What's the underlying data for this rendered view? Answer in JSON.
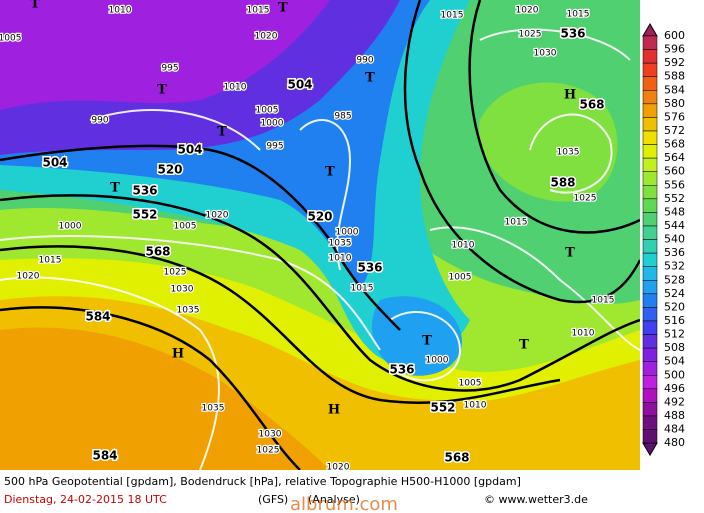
{
  "legend": {
    "levels": [
      600,
      596,
      592,
      588,
      584,
      580,
      576,
      572,
      568,
      564,
      560,
      556,
      552,
      548,
      544,
      540,
      536,
      532,
      528,
      524,
      520,
      516,
      512,
      508,
      504,
      500,
      496,
      492,
      488,
      484,
      480
    ],
    "colors": [
      "#a0205a",
      "#c02a50",
      "#e03030",
      "#f04020",
      "#f06010",
      "#f08010",
      "#f0a000",
      "#f0c000",
      "#f0e000",
      "#e0f000",
      "#c0f020",
      "#a0e830",
      "#80e040",
      "#60d850",
      "#50d070",
      "#40d090",
      "#30d0b0",
      "#20d0d0",
      "#20b8e8",
      "#20a0f0",
      "#2080f0",
      "#3060f0",
      "#4040f0",
      "#6030e0",
      "#8020e0",
      "#a020e0",
      "#c020e0",
      "#b010c0",
      "#9010a0",
      "#701080",
      "#601070"
    ]
  },
  "map": {
    "geopotential_labels": [
      504,
      504,
      504,
      520,
      520,
      536,
      536,
      536,
      536,
      552,
      552,
      568,
      568,
      568,
      584,
      584,
      588
    ],
    "pressure_labels": [
      1010,
      1015,
      1020,
      1005,
      995,
      990,
      1010,
      1005,
      1000,
      995,
      985,
      990,
      1000,
      1010,
      1015,
      1035,
      1025,
      1015,
      1010,
      1005,
      1000,
      1005,
      1010,
      1015,
      1010,
      1000,
      1015,
      1020,
      1025,
      1030,
      1035,
      1035,
      1030,
      1025,
      1020,
      1005,
      1020,
      1035,
      1015,
      1020,
      1015,
      1025,
      1030
    ],
    "centers": [
      "T",
      "T",
      "T",
      "T",
      "T",
      "T",
      "T",
      "T",
      "T",
      "T",
      "H",
      "H",
      "H"
    ]
  },
  "footer": {
    "title": "500 hPa Geopotential [gpdam], Bodendruck [hPa], relative Topographie H500-H1000 [gpdam]",
    "date": "Dienstag, 24-02-2015  18 UTC",
    "model": "(GFS)",
    "run": "(Analyse)",
    "credit": "© www.wetter3.de",
    "watermark": "albrum.com"
  }
}
